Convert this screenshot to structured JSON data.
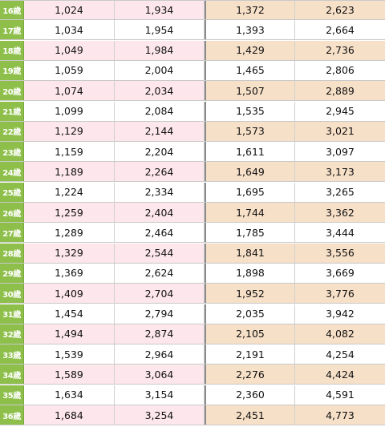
{
  "table": {
    "rows": [
      {
        "age": "16歳",
        "c1": "1,024",
        "c2": "1,934",
        "c3": "1,372",
        "c4": "2,623",
        "tinted": true
      },
      {
        "age": "17歳",
        "c1": "1,034",
        "c2": "1,954",
        "c3": "1,393",
        "c4": "2,664",
        "tinted": false
      },
      {
        "age": "18歳",
        "c1": "1,049",
        "c2": "1,984",
        "c3": "1,429",
        "c4": "2,736",
        "tinted": true
      },
      {
        "age": "19歳",
        "c1": "1,059",
        "c2": "2,004",
        "c3": "1,465",
        "c4": "2,806",
        "tinted": false
      },
      {
        "age": "20歳",
        "c1": "1,074",
        "c2": "2,034",
        "c3": "1,507",
        "c4": "2,889",
        "tinted": true
      },
      {
        "age": "21歳",
        "c1": "1,099",
        "c2": "2,084",
        "c3": "1,535",
        "c4": "2,945",
        "tinted": false
      },
      {
        "age": "22歳",
        "c1": "1,129",
        "c2": "2,144",
        "c3": "1,573",
        "c4": "3,021",
        "tinted": true
      },
      {
        "age": "23歳",
        "c1": "1,159",
        "c2": "2,204",
        "c3": "1,611",
        "c4": "3,097",
        "tinted": false
      },
      {
        "age": "24歳",
        "c1": "1,189",
        "c2": "2,264",
        "c3": "1,649",
        "c4": "3,173",
        "tinted": true
      },
      {
        "age": "25歳",
        "c1": "1,224",
        "c2": "2,334",
        "c3": "1,695",
        "c4": "3,265",
        "tinted": false
      },
      {
        "age": "26歳",
        "c1": "1,259",
        "c2": "2,404",
        "c3": "1,744",
        "c4": "3,362",
        "tinted": true
      },
      {
        "age": "27歳",
        "c1": "1,289",
        "c2": "2,464",
        "c3": "1,785",
        "c4": "3,444",
        "tinted": false
      },
      {
        "age": "28歳",
        "c1": "1,329",
        "c2": "2,544",
        "c3": "1,841",
        "c4": "3,556",
        "tinted": true
      },
      {
        "age": "29歳",
        "c1": "1,369",
        "c2": "2,624",
        "c3": "1,898",
        "c4": "3,669",
        "tinted": false
      },
      {
        "age": "30歳",
        "c1": "1,409",
        "c2": "2,704",
        "c3": "1,952",
        "c4": "3,776",
        "tinted": true
      },
      {
        "age": "31歳",
        "c1": "1,454",
        "c2": "2,794",
        "c3": "2,035",
        "c4": "3,942",
        "tinted": false
      },
      {
        "age": "32歳",
        "c1": "1,494",
        "c2": "2,874",
        "c3": "2,105",
        "c4": "4,082",
        "tinted": true
      },
      {
        "age": "33歳",
        "c1": "1,539",
        "c2": "2,964",
        "c3": "2,191",
        "c4": "4,254",
        "tinted": false
      },
      {
        "age": "34歳",
        "c1": "1,589",
        "c2": "3,064",
        "c3": "2,276",
        "c4": "4,424",
        "tinted": true
      },
      {
        "age": "35歳",
        "c1": "1,634",
        "c2": "3,154",
        "c3": "2,360",
        "c4": "4,591",
        "tinted": false
      },
      {
        "age": "36歳",
        "c1": "1,684",
        "c2": "3,254",
        "c3": "2,451",
        "c4": "4,773",
        "tinted": true
      }
    ]
  },
  "colors": {
    "age_column": "#8dbf4a",
    "pink_tint": "#fde7ec",
    "peach_tint": "#f7e0c8"
  }
}
